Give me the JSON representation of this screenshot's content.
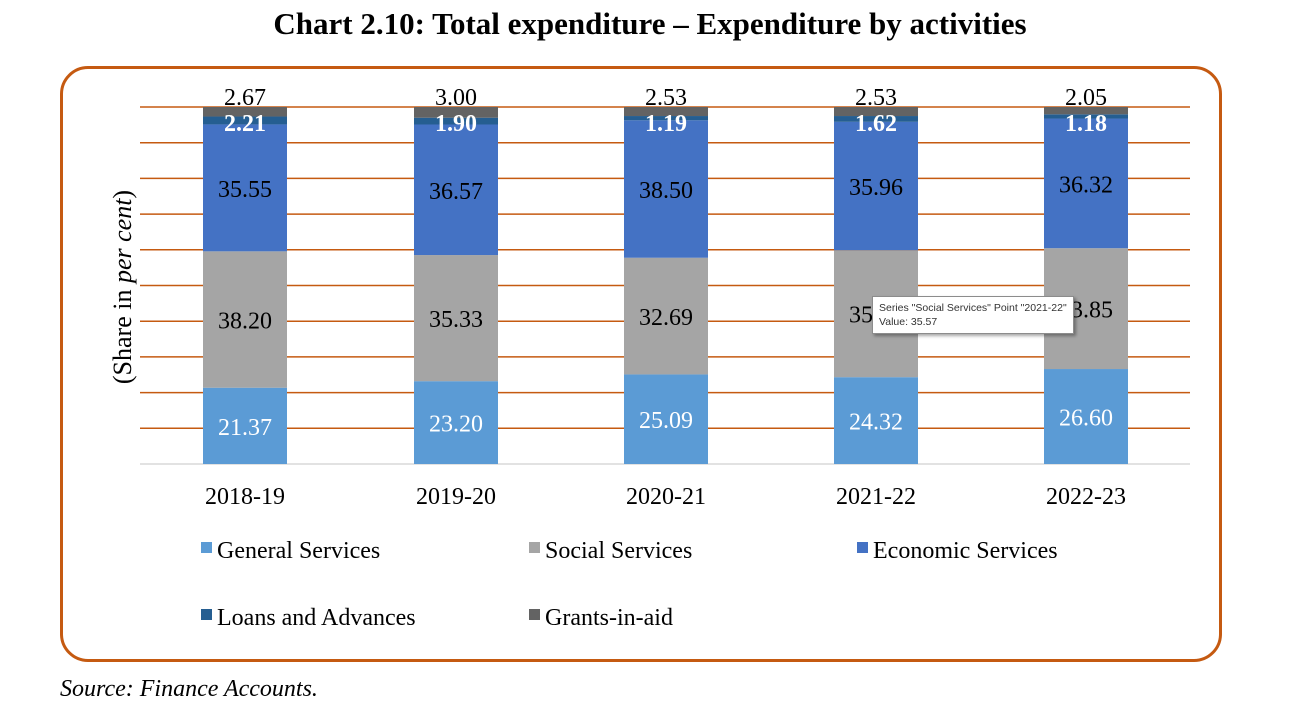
{
  "title": "Chart 2.10: Total expenditure – Expenditure by activities",
  "source": "Source: Finance Accounts.",
  "tooltip": {
    "line1": "Series \"Social Services\" Point \"2021-22\"",
    "line2": "Value: 35.57"
  },
  "chart_data": {
    "type": "bar",
    "stacked": true,
    "categories": [
      "2018-19",
      "2019-20",
      "2020-21",
      "2021-22",
      "2022-23"
    ],
    "ylabel_prefix": "(Share in ",
    "ylabel_italic": "per cent",
    "ylabel_suffix": ")",
    "ylim": [
      0,
      100
    ],
    "grid": true,
    "legend_position": "bottom",
    "series": [
      {
        "name": "General Services",
        "color": "#5b9bd5",
        "label_color": "#ffffff",
        "label_bold": false,
        "values": [
          21.37,
          23.2,
          25.09,
          24.32,
          26.6
        ],
        "labels": [
          "21.37",
          "23.20",
          "25.09",
          "24.32",
          "26.60"
        ]
      },
      {
        "name": "Social Services",
        "color": "#a5a5a5",
        "label_color": "#000000",
        "label_bold": false,
        "values": [
          38.2,
          35.33,
          32.69,
          35.57,
          33.85
        ],
        "labels": [
          "38.20",
          "35.33",
          "32.69",
          "35.57",
          "33.85"
        ]
      },
      {
        "name": "Economic Services",
        "color": "#4472c4",
        "label_color": "#000000",
        "label_bold": false,
        "values": [
          35.55,
          36.57,
          38.5,
          35.96,
          36.32
        ],
        "labels": [
          "35.55",
          "36.57",
          "38.50",
          "35.96",
          "36.32"
        ]
      },
      {
        "name": "Loans and Advances",
        "color": "#255e91",
        "label_color": "#ffffff",
        "label_bold": true,
        "values": [
          2.21,
          1.9,
          1.19,
          1.62,
          1.18
        ],
        "labels": [
          "2.21",
          "1.90",
          "1.19",
          "1.62",
          "1.18"
        ]
      },
      {
        "name": "Grants-in-aid",
        "color": "#636363",
        "label_color": "#000000",
        "label_bold": false,
        "values": [
          2.67,
          3.0,
          2.53,
          2.53,
          2.05
        ],
        "labels": [
          "2.67",
          "3.00",
          "2.53",
          "2.53",
          "2.05"
        ]
      }
    ]
  }
}
